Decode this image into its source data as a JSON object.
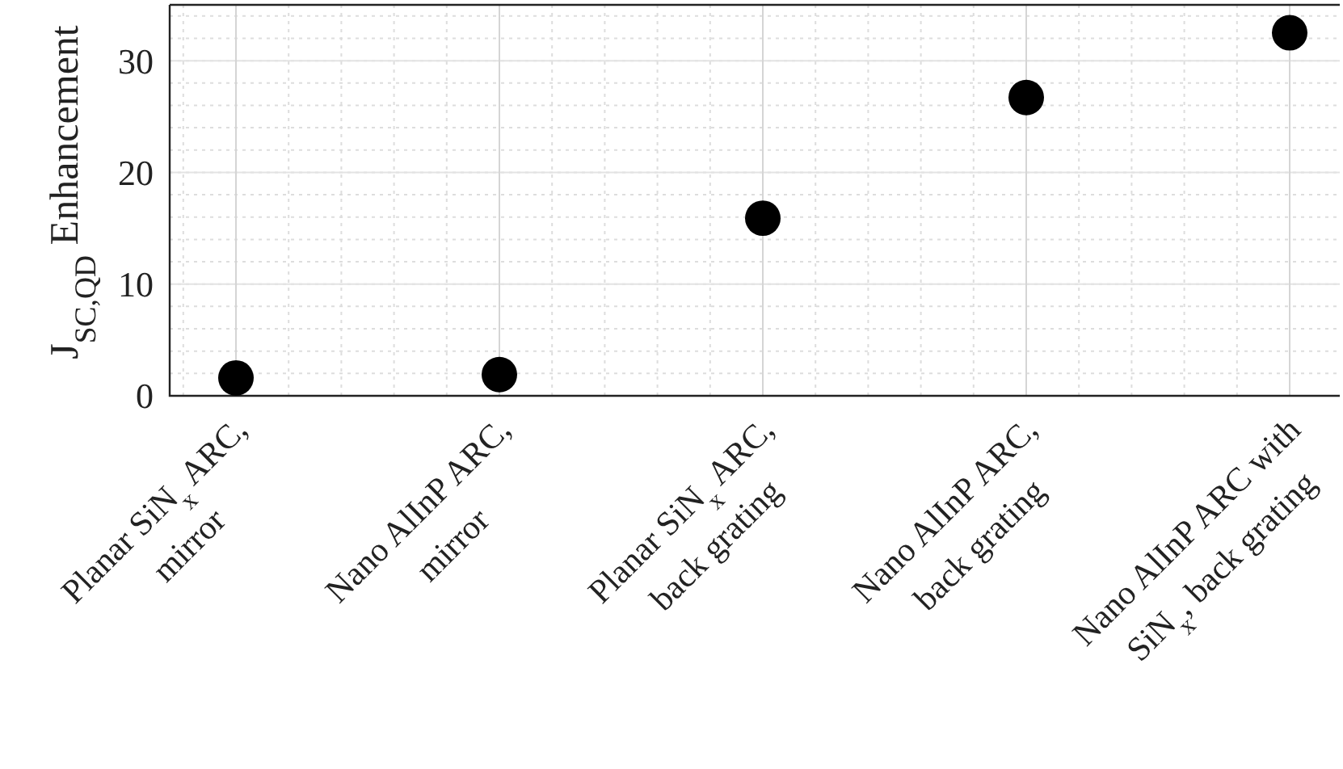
{
  "chart_data": {
    "type": "scatter",
    "ylabel": "J$_{SC,QD}$ Enhancement",
    "categories": [
      "Planar SiN$_{x}$ ARC,\nmirror",
      "Nano AlInP ARC,\nmirror",
      "Planar SiN$_{x}$ ARC,\nback grating",
      "Nano AlInP ARC,\nback grating",
      "Nano AlInP ARC with\nSiN$_{x}$, back grating"
    ],
    "series": [
      {
        "color": "#000000",
        "values": [
          1.6,
          1.9,
          15.9,
          26.7,
          32.5
        ]
      }
    ],
    "ylim": [
      0,
      35
    ],
    "yticks": [
      0,
      10,
      20,
      30
    ],
    "grid": true,
    "marker": "circle"
  }
}
